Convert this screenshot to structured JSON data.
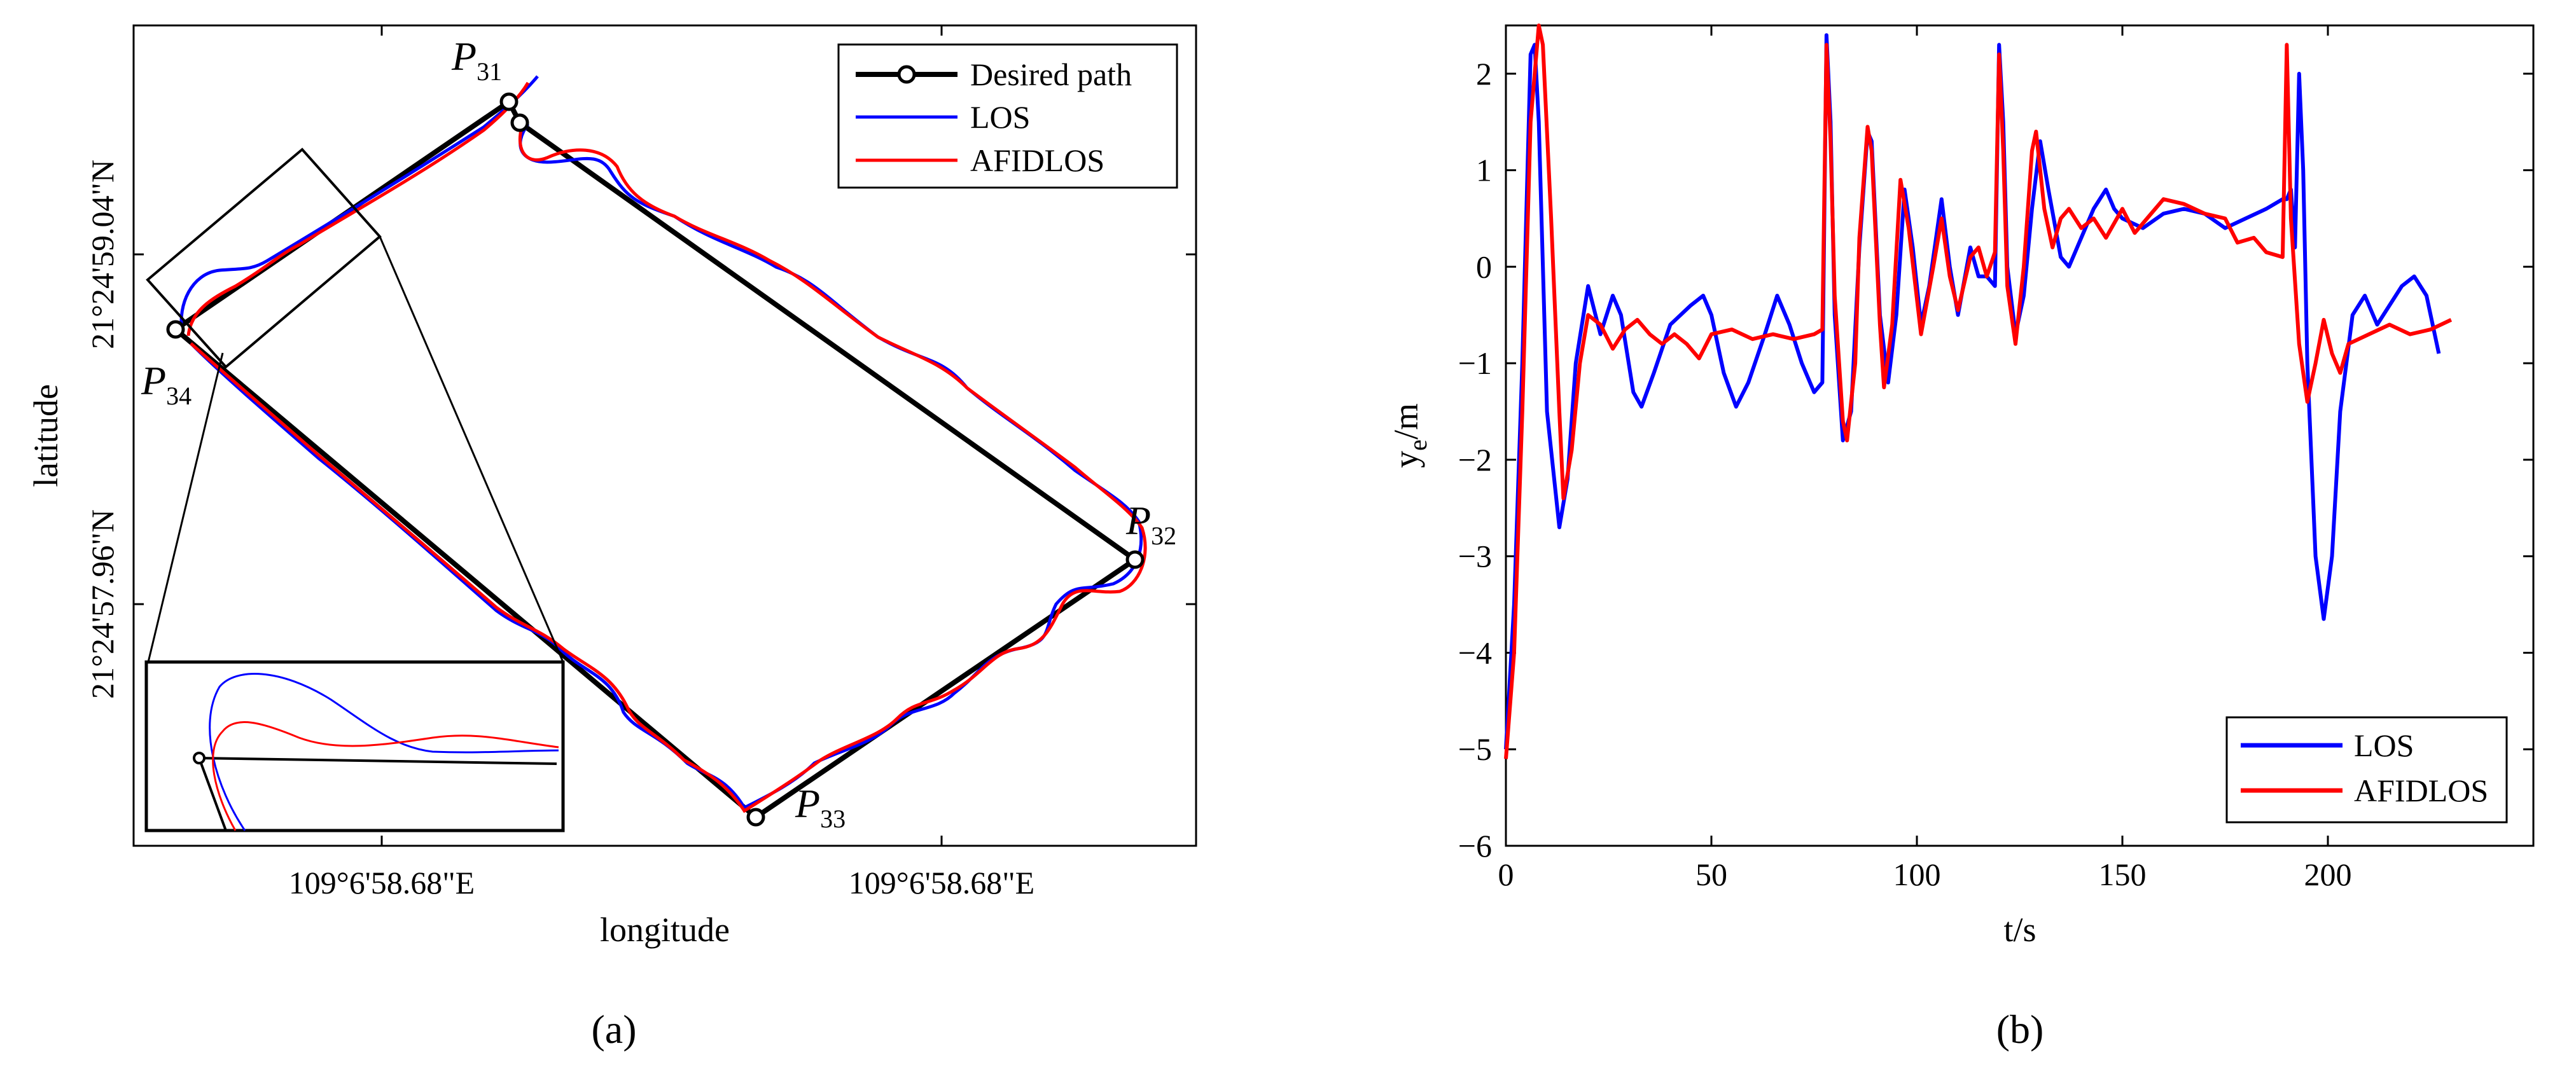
{
  "chart_data": [
    {
      "panel": "(a)",
      "type": "line",
      "xlabel": "longitude",
      "ylabel": "latitude",
      "x_tick_labels": [
        "109°6'58.68\"E",
        "109°6'58.68\"E"
      ],
      "y_tick_labels": [
        "21°24'59.04\"N",
        "21°24'57.96\"N"
      ],
      "legend": [
        "Desired path",
        "LOS",
        "AFIDLOS"
      ],
      "legend_location": "top-right",
      "waypoint_labels": [
        {
          "name": "P",
          "sub": "31"
        },
        {
          "name": "P",
          "sub": "32"
        },
        {
          "name": "P",
          "sub": "33"
        },
        {
          "name": "P",
          "sub": "34"
        }
      ],
      "waypoints_unit": "normalized plot coordinates (0-1, origin bottom-left)",
      "waypoints": {
        "P31": [
          0.36,
          0.91
        ],
        "P31b": [
          0.37,
          0.88
        ],
        "P32": [
          0.98,
          0.33
        ],
        "P33": [
          0.58,
          0.03
        ],
        "P34": [
          0.04,
          0.65
        ]
      },
      "inset": "zoomed detail of the path near P34",
      "colors": {
        "desired": "#000000",
        "los": "#0000ff",
        "afidlos": "#ff0000"
      }
    },
    {
      "panel": "(b)",
      "type": "line",
      "xlabel": "t/s",
      "ylabel": "y",
      "ylabel_sub": "e",
      "ylabel_suffix": "/m",
      "xlim": [
        0,
        250
      ],
      "ylim": [
        -6,
        2.5
      ],
      "x_ticks": [
        0,
        50,
        100,
        150,
        200
      ],
      "y_ticks": [
        -6,
        -5,
        -4,
        -3,
        -2,
        -1,
        0,
        1,
        2
      ],
      "legend_location": "bottom-right",
      "series": [
        {
          "name": "LOS",
          "color": "#0000ff",
          "points": [
            [
              0,
              -5
            ],
            [
              2,
              -3.5
            ],
            [
              4,
              -1
            ],
            [
              6,
              2.2
            ],
            [
              7,
              2.3
            ],
            [
              8,
              1.5
            ],
            [
              10,
              -1.5
            ],
            [
              13,
              -2.7
            ],
            [
              15,
              -2.2
            ],
            [
              17,
              -1
            ],
            [
              20,
              -0.2
            ],
            [
              23,
              -0.7
            ],
            [
              26,
              -0.3
            ],
            [
              28,
              -0.5
            ],
            [
              31,
              -1.3
            ],
            [
              33,
              -1.45
            ],
            [
              36,
              -1.1
            ],
            [
              40,
              -0.6
            ],
            [
              45,
              -0.4
            ],
            [
              48,
              -0.3
            ],
            [
              50,
              -0.5
            ],
            [
              53,
              -1.1
            ],
            [
              56,
              -1.45
            ],
            [
              59,
              -1.2
            ],
            [
              63,
              -0.7
            ],
            [
              66,
              -0.3
            ],
            [
              69,
              -0.6
            ],
            [
              72,
              -1
            ],
            [
              75,
              -1.3
            ],
            [
              77,
              -1.2
            ],
            [
              78,
              2.4
            ],
            [
              79,
              1.5
            ],
            [
              80,
              -0.5
            ],
            [
              82,
              -1.8
            ],
            [
              84,
              -1.5
            ],
            [
              86,
              0.2
            ],
            [
              88,
              1.4
            ],
            [
              89,
              1.3
            ],
            [
              91,
              -0.5
            ],
            [
              93,
              -1.2
            ],
            [
              95,
              -0.5
            ],
            [
              97,
              0.8
            ],
            [
              99,
              0.2
            ],
            [
              101,
              -0.6
            ],
            [
              103,
              -0.2
            ],
            [
              106,
              0.7
            ],
            [
              108,
              0
            ],
            [
              110,
              -0.5
            ],
            [
              113,
              0.2
            ],
            [
              115,
              -0.1
            ],
            [
              117,
              -0.1
            ],
            [
              119,
              -0.2
            ],
            [
              120,
              2.3
            ],
            [
              121,
              1.5
            ],
            [
              122,
              0
            ],
            [
              124,
              -0.7
            ],
            [
              126,
              -0.3
            ],
            [
              128,
              0.6
            ],
            [
              130,
              1.3
            ],
            [
              132,
              0.8
            ],
            [
              135,
              0.1
            ],
            [
              137,
              0
            ],
            [
              140,
              0.3
            ],
            [
              143,
              0.6
            ],
            [
              146,
              0.8
            ],
            [
              148,
              0.6
            ],
            [
              150,
              0.5
            ],
            [
              155,
              0.4
            ],
            [
              160,
              0.55
            ],
            [
              165,
              0.6
            ],
            [
              170,
              0.55
            ],
            [
              175,
              0.4
            ],
            [
              180,
              0.5
            ],
            [
              185,
              0.6
            ],
            [
              189,
              0.7
            ],
            [
              190,
              0.7
            ],
            [
              191,
              0.8
            ],
            [
              192,
              0.2
            ],
            [
              193,
              2
            ],
            [
              194,
              1
            ],
            [
              195,
              -1
            ],
            [
              197,
              -3
            ],
            [
              199,
              -3.65
            ],
            [
              201,
              -3
            ],
            [
              203,
              -1.5
            ],
            [
              206,
              -0.5
            ],
            [
              209,
              -0.3
            ],
            [
              212,
              -0.6
            ],
            [
              215,
              -0.4
            ],
            [
              218,
              -0.2
            ],
            [
              221,
              -0.1
            ],
            [
              224,
              -0.3
            ],
            [
              227,
              -0.9
            ]
          ]
        },
        {
          "name": "AFIDLOS",
          "color": "#ff0000",
          "points": [
            [
              0,
              -5.1
            ],
            [
              2,
              -4
            ],
            [
              4,
              -1.5
            ],
            [
              6,
              1.5
            ],
            [
              8,
              2.5
            ],
            [
              9,
              2.3
            ],
            [
              11,
              0.5
            ],
            [
              13,
              -1.5
            ],
            [
              14,
              -2.4
            ],
            [
              16,
              -1.9
            ],
            [
              18,
              -1
            ],
            [
              20,
              -0.5
            ],
            [
              23,
              -0.6
            ],
            [
              26,
              -0.85
            ],
            [
              29,
              -0.65
            ],
            [
              32,
              -0.55
            ],
            [
              35,
              -0.7
            ],
            [
              38,
              -0.8
            ],
            [
              41,
              -0.7
            ],
            [
              44,
              -0.8
            ],
            [
              47,
              -0.95
            ],
            [
              50,
              -0.7
            ],
            [
              55,
              -0.65
            ],
            [
              60,
              -0.75
            ],
            [
              65,
              -0.7
            ],
            [
              70,
              -0.75
            ],
            [
              75,
              -0.7
            ],
            [
              77,
              -0.65
            ],
            [
              78,
              2.3
            ],
            [
              79,
              1.3
            ],
            [
              80,
              -0.3
            ],
            [
              82,
              -1.6
            ],
            [
              83,
              -1.8
            ],
            [
              85,
              -1
            ],
            [
              86,
              0.3
            ],
            [
              88,
              1.45
            ],
            [
              89,
              1.2
            ],
            [
              91,
              -0.6
            ],
            [
              92,
              -1.25
            ],
            [
              94,
              -0.6
            ],
            [
              96,
              0.9
            ],
            [
              98,
              0.4
            ],
            [
              101,
              -0.7
            ],
            [
              104,
              0
            ],
            [
              106,
              0.5
            ],
            [
              108,
              -0.1
            ],
            [
              110,
              -0.45
            ],
            [
              113,
              0.1
            ],
            [
              115,
              0.2
            ],
            [
              117,
              -0.1
            ],
            [
              119,
              0.15
            ],
            [
              120,
              2.2
            ],
            [
              121,
              1.2
            ],
            [
              122,
              -0.2
            ],
            [
              124,
              -0.8
            ],
            [
              126,
              0
            ],
            [
              128,
              1.2
            ],
            [
              129,
              1.4
            ],
            [
              131,
              0.6
            ],
            [
              133,
              0.2
            ],
            [
              135,
              0.5
            ],
            [
              137,
              0.6
            ],
            [
              140,
              0.4
            ],
            [
              143,
              0.5
            ],
            [
              146,
              0.3
            ],
            [
              150,
              0.6
            ],
            [
              153,
              0.35
            ],
            [
              156,
              0.5
            ],
            [
              160,
              0.7
            ],
            [
              165,
              0.65
            ],
            [
              170,
              0.55
            ],
            [
              175,
              0.5
            ],
            [
              178,
              0.25
            ],
            [
              182,
              0.3
            ],
            [
              185,
              0.15
            ],
            [
              189,
              0.1
            ],
            [
              190,
              2.3
            ],
            [
              191,
              0.5
            ],
            [
              193,
              -0.8
            ],
            [
              195,
              -1.4
            ],
            [
              197,
              -1
            ],
            [
              199,
              -0.55
            ],
            [
              201,
              -0.9
            ],
            [
              203,
              -1.1
            ],
            [
              205,
              -0.8
            ],
            [
              210,
              -0.7
            ],
            [
              215,
              -0.6
            ],
            [
              220,
              -0.7
            ],
            [
              225,
              -0.65
            ],
            [
              230,
              -0.55
            ]
          ]
        }
      ]
    }
  ]
}
